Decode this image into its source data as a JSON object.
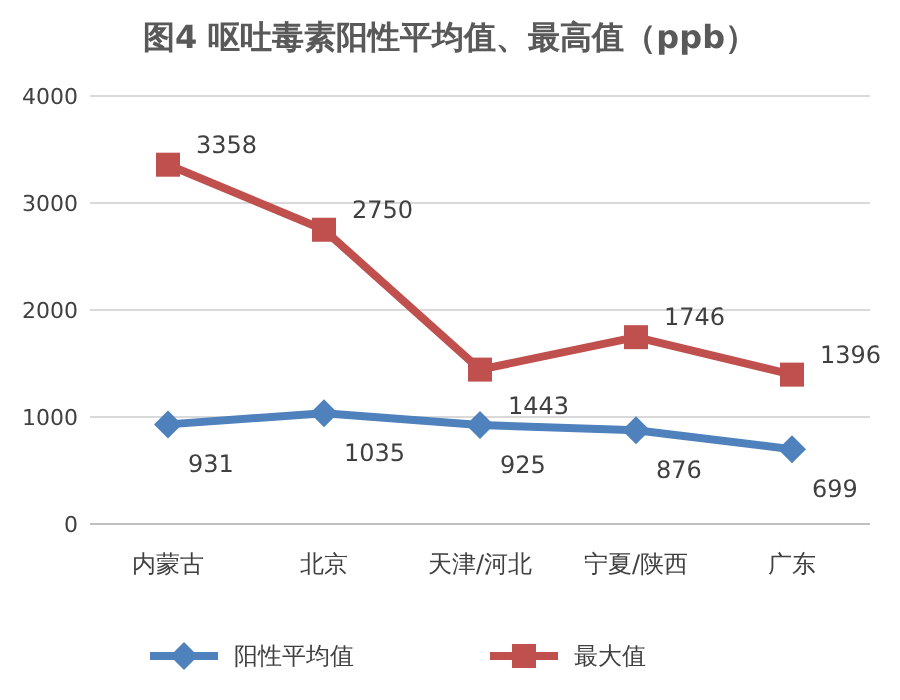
{
  "chart_data": {
    "type": "line",
    "title": "图4 呕吐毒素阳性平均值、最高值（ppb）",
    "categories": [
      "内蒙古",
      "北京",
      "天津/河北",
      "宁夏/陕西",
      "广东"
    ],
    "series": [
      {
        "name": "阳性平均值",
        "color": "#4f81bd",
        "marker": "diamond",
        "values": [
          931,
          1035,
          925,
          876,
          699
        ]
      },
      {
        "name": "最大值",
        "color": "#c0504d",
        "marker": "square",
        "values": [
          3358,
          2750,
          1443,
          1746,
          1396
        ]
      }
    ],
    "ylim": [
      0,
      4000
    ],
    "yticks": [
      0,
      1000,
      2000,
      3000,
      4000
    ],
    "grid": "y",
    "legend": "bottom",
    "data_labels": true,
    "line_style": "solid"
  }
}
